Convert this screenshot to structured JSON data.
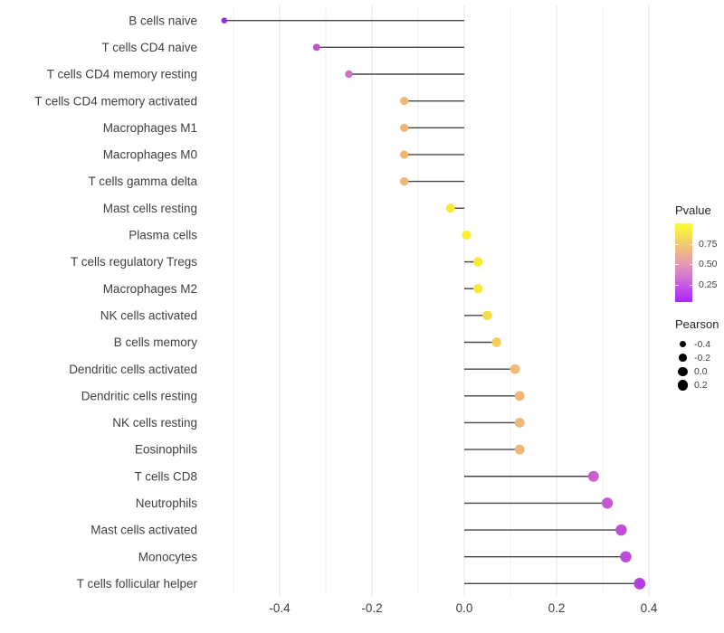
{
  "chart_data": {
    "type": "lollipop",
    "title": "",
    "xlabel": "",
    "ylabel": "",
    "x_tick_labels": [
      "-0.4",
      "-0.2",
      "0.0",
      "0.2",
      "0.4"
    ],
    "x_tick_values": [
      -0.4,
      -0.2,
      0.0,
      0.2,
      0.4
    ],
    "x_minor_gridlines": [
      -0.5,
      -0.3,
      -0.1,
      0.1,
      0.3
    ],
    "xlim": [
      -0.568,
      0.439
    ],
    "baseline": 0,
    "grid": "vertical gridlines only, no axis lines",
    "points": [
      {
        "label": "B cells naive",
        "pearson": -0.52,
        "color": "#942DDB"
      },
      {
        "label": "T cells CD4 naive",
        "pearson": -0.32,
        "color": "#BC53C6"
      },
      {
        "label": "T cells CD4 memory resting",
        "pearson": -0.25,
        "color": "#D172BE"
      },
      {
        "label": "T cells CD4 memory activated",
        "pearson": -0.13,
        "color": "#EFB77A"
      },
      {
        "label": "Macrophages M1",
        "pearson": -0.13,
        "color": "#EFB678"
      },
      {
        "label": "Macrophages M0",
        "pearson": -0.13,
        "color": "#EFB678"
      },
      {
        "label": "T cells gamma delta",
        "pearson": -0.13,
        "color": "#EFB678"
      },
      {
        "label": "Mast cells resting",
        "pearson": -0.03,
        "color": "#F9E92C"
      },
      {
        "label": "Plasma cells",
        "pearson": 0.005,
        "color": "#FBF02A"
      },
      {
        "label": "T cells regulatory  Tregs",
        "pearson": 0.03,
        "color": "#F8EC33"
      },
      {
        "label": "Macrophages M2",
        "pearson": 0.03,
        "color": "#F7E93A"
      },
      {
        "label": "NK cells activated",
        "pearson": 0.05,
        "color": "#F6DC48"
      },
      {
        "label": "B cells memory",
        "pearson": 0.07,
        "color": "#F3CF5E"
      },
      {
        "label": "Dendritic cells activated",
        "pearson": 0.11,
        "color": "#F1BB73"
      },
      {
        "label": "Dendritic cells resting",
        "pearson": 0.12,
        "color": "#F0B67A"
      },
      {
        "label": "NK cells resting",
        "pearson": 0.12,
        "color": "#F0B67A"
      },
      {
        "label": "Eosinophils",
        "pearson": 0.12,
        "color": "#F0B67A"
      },
      {
        "label": "T cells CD8",
        "pearson": 0.28,
        "color": "#C960CE"
      },
      {
        "label": "Neutrophils",
        "pearson": 0.31,
        "color": "#C557D3"
      },
      {
        "label": "Mast cells activated",
        "pearson": 0.34,
        "color": "#BF4ED8"
      },
      {
        "label": "Monocytes",
        "pearson": 0.35,
        "color": "#BD4BDA"
      },
      {
        "label": "T cells follicular helper",
        "pearson": 0.38,
        "color": "#B43EDF"
      }
    ],
    "legends": {
      "pvalue": {
        "title": "Pvalue",
        "ticks": [
          {
            "label": "0.75",
            "pos": 0.26
          },
          {
            "label": "0.50",
            "pos": 0.52
          },
          {
            "label": "0.25",
            "pos": 0.78
          }
        ],
        "gradient_top_to_bottom": [
          "#FCFE2E",
          "#F8E74B",
          "#F2CC6D",
          "#EDB48C",
          "#E49CAC",
          "#D983C9",
          "#CA63DE",
          "#BB43EB",
          "#A826F2"
        ]
      },
      "pearson": {
        "title": "Pearson",
        "entries": [
          {
            "label": "-0.4",
            "value": -0.4
          },
          {
            "label": "-0.2",
            "value": -0.2
          },
          {
            "label": "0.0",
            "value": 0.0
          },
          {
            "label": "0.2",
            "value": 0.2
          }
        ],
        "dot_color": "#000000"
      }
    },
    "style": {
      "background": "#FFFFFF",
      "stem_color": "#454545",
      "grid_major_color": "#E3E3E3",
      "grid_minor_color": "#F1F1F1",
      "axis_text_color": "#404040"
    }
  }
}
